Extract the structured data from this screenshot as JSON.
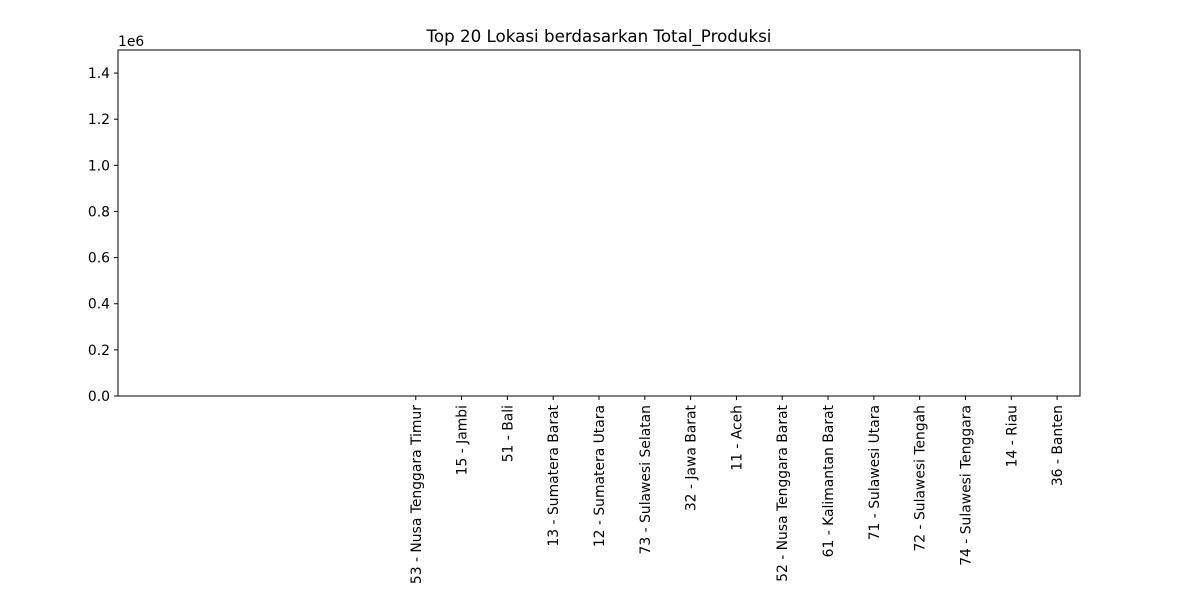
{
  "chart_data": {
    "type": "bar",
    "title": "Top 20 Lokasi berdasarkan Total_Produksi",
    "xlabel": "",
    "ylabel": "",
    "y_offset_label": "1e6",
    "y_scale": 1000000,
    "ylim": [
      0,
      1.5
    ],
    "y_ticks": [
      0.0,
      0.2,
      0.4,
      0.6,
      0.8,
      1.0,
      1.2,
      1.4
    ],
    "y_tick_labels": [
      "0.0",
      "0.2",
      "0.4",
      "0.6",
      "0.8",
      "1.0",
      "1.2",
      "1.4"
    ],
    "x_slot_start": -6.5,
    "x_slot_end": 14.5,
    "categories": [
      "53 - Nusa Tenggara Timur",
      "15 - Jambi",
      "51 - Bali",
      "13 - Sumatera Barat",
      "12 - Sumatera Utara",
      "73 - Sulawesi Selatan",
      "32 - Jawa Barat",
      "11 - Aceh",
      "52 - Nusa Tenggara Barat",
      "61 - Kalimantan Barat",
      "71 - Sulawesi Utara",
      "72 - Sulawesi Tengah",
      "74 - Sulawesi Tenggara",
      "14 - Riau",
      "36 - Banten"
    ],
    "values": [
      0,
      0,
      0,
      0,
      0,
      0,
      0,
      0,
      0,
      0,
      0,
      0,
      0,
      0,
      0
    ],
    "bar_color": "#1f77b4",
    "grid": false,
    "legend": "none"
  }
}
